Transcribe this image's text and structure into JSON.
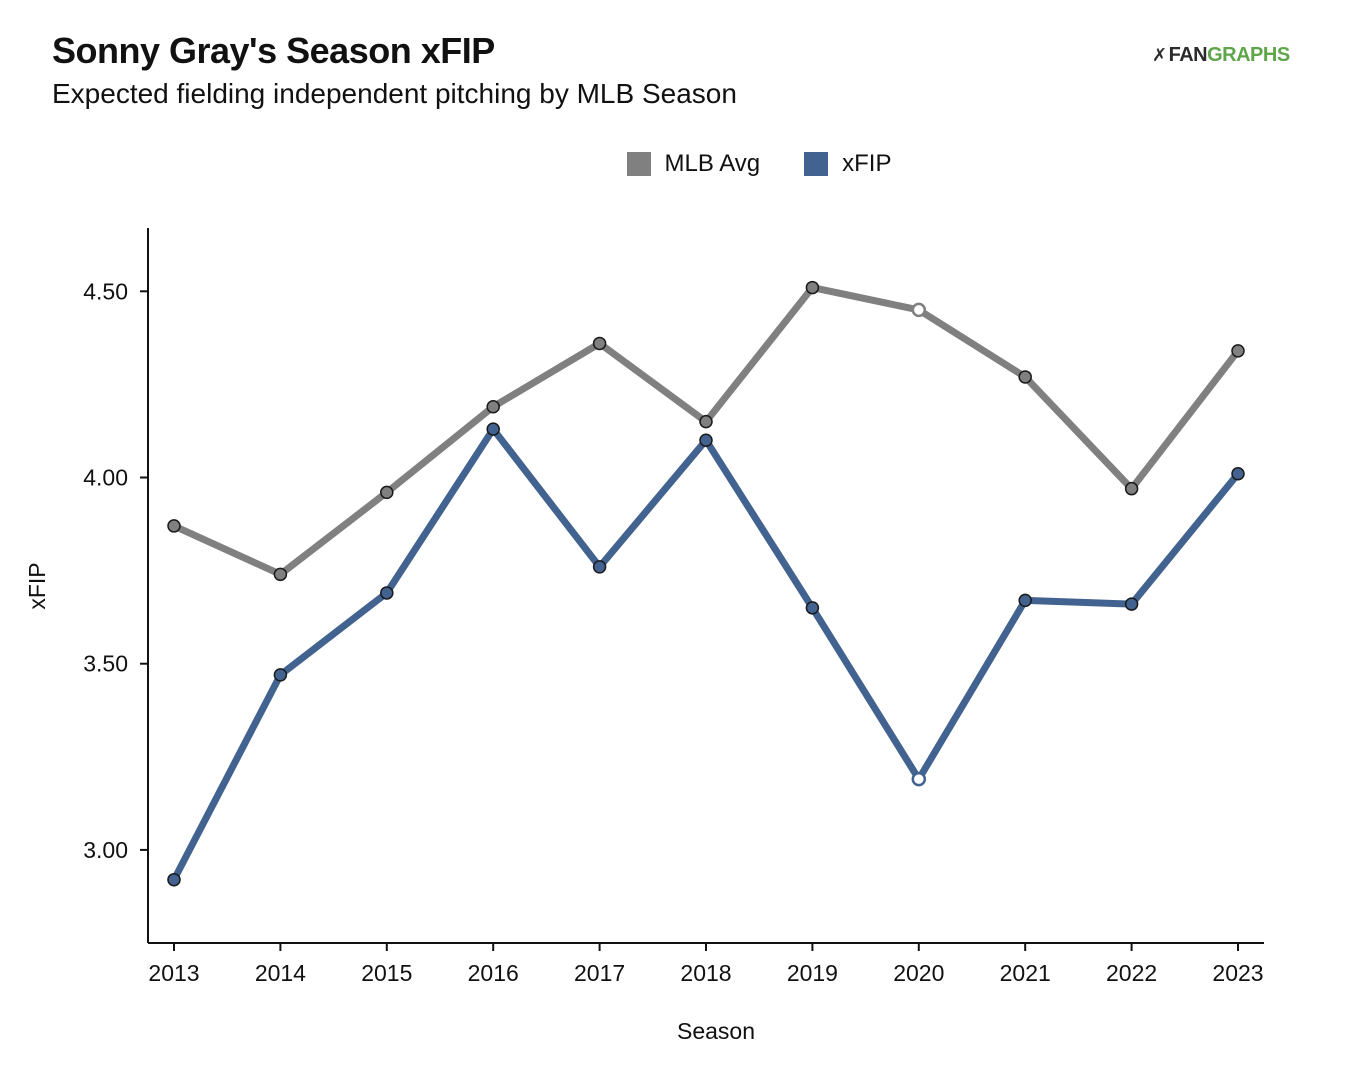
{
  "title": "Sonny Gray's Season xFIP",
  "subtitle": "Expected fielding independent pitching by MLB Season",
  "logo": {
    "mark": "✗",
    "part1": "FAN",
    "part2": "GRAPHS"
  },
  "colors": {
    "mlb_avg": "#808080",
    "xfip": "#42638f",
    "axis": "#111111",
    "logo_green": "#5fa54a"
  },
  "chart_data": {
    "type": "line",
    "xlabel": "Season",
    "ylabel": "xFIP",
    "ylim": [
      2.75,
      4.67
    ],
    "yticks": [
      3.0,
      3.5,
      4.0,
      4.5
    ],
    "ytick_labels": [
      "3.00",
      "3.50",
      "4.00",
      "4.50"
    ],
    "x": [
      "2013",
      "2014",
      "2015",
      "2016",
      "2017",
      "2018",
      "2019",
      "2020",
      "2021",
      "2022",
      "2023"
    ],
    "legend_position": "top",
    "grid": false,
    "series": [
      {
        "name": "MLB Avg",
        "color": "#808080",
        "values": [
          3.87,
          3.74,
          3.96,
          4.19,
          4.36,
          4.15,
          4.51,
          4.45,
          4.27,
          3.97,
          4.34
        ],
        "hollow_marker_index": 7
      },
      {
        "name": "xFIP",
        "color": "#42638f",
        "values": [
          2.92,
          3.47,
          3.69,
          4.13,
          3.76,
          4.1,
          3.65,
          3.19,
          3.67,
          3.66,
          4.01
        ],
        "hollow_marker_index": 7
      }
    ]
  }
}
